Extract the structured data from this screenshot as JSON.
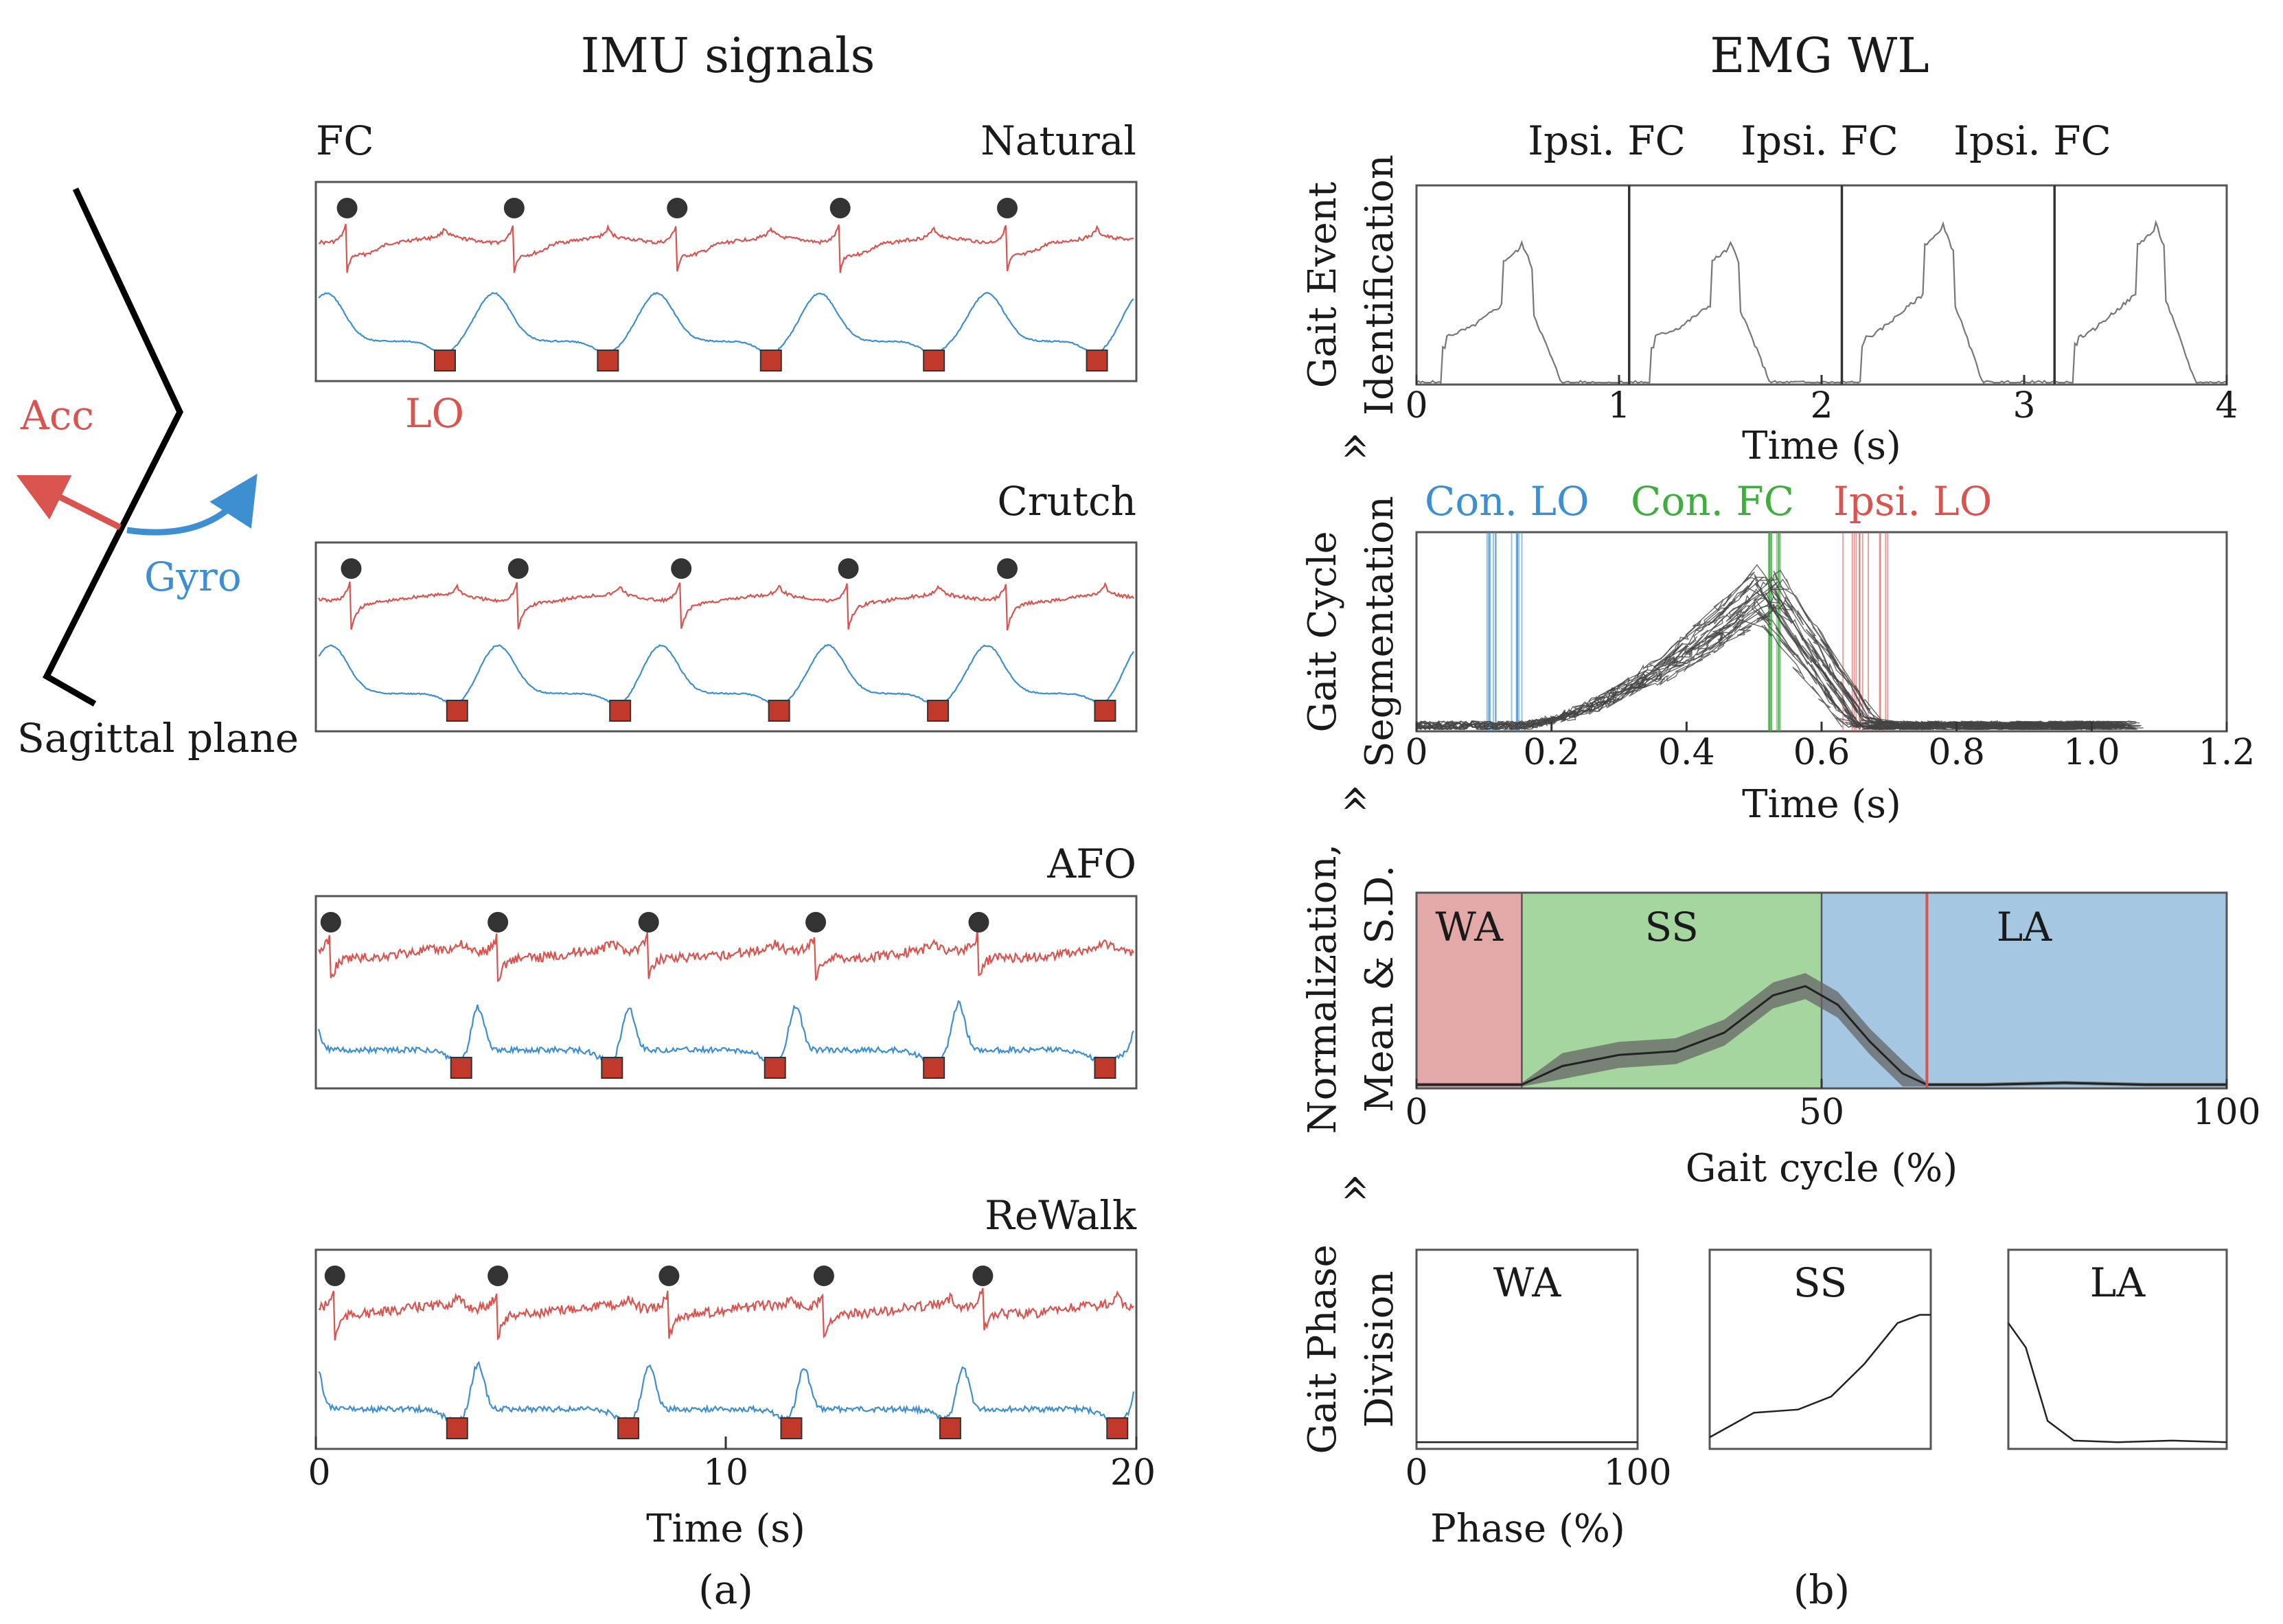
{
  "colors": {
    "acc": "#d9534f",
    "gyro": "#3d8fd1",
    "event_dot": "#333333",
    "lo_square": "#c0392b",
    "wa_fill": "#e3a8a8",
    "ss_fill": "#a6d6a0",
    "la_fill": "#a5c7e2",
    "con_lo": "#3d8fd1",
    "con_fc": "#3fae3f",
    "ipsi_lo": "#d9534f"
  },
  "panel_a": {
    "title": "IMU signals",
    "caption": "(a)",
    "skeleton": {
      "acc_label": "Acc",
      "gyro_label": "Gyro",
      "plane_label": "Sagittal plane"
    },
    "fc_label": "FC",
    "lo_label": "LO",
    "conditions": [
      "Natural",
      "Crutch",
      "AFO",
      "ReWalk"
    ],
    "x_ticks": [
      "0",
      "10",
      "20"
    ],
    "x_label": "Time (s)"
  },
  "panel_b": {
    "title": "EMG WL",
    "caption": "(b)",
    "arrow_glyph": "«",
    "step1": {
      "ylabel_line1": "Gait Event",
      "ylabel_line2": "Identification",
      "annotations": [
        "Ipsi. FC",
        "Ipsi. FC",
        "Ipsi. FC"
      ],
      "x_ticks": [
        "0",
        "1",
        "2",
        "3",
        "4"
      ],
      "x_label": "Time (s)"
    },
    "step2": {
      "ylabel_line1": "Gait Cycle",
      "ylabel_line2": "Segmentation",
      "legend": [
        "Con. LO",
        "Con. FC",
        "Ipsi. LO"
      ],
      "x_ticks": [
        "0",
        "0.2",
        "0.4",
        "0.6",
        "0.8",
        "1.0",
        "1.2"
      ],
      "x_label": "Time (s)"
    },
    "step3": {
      "ylabel_line1": "Normalization,",
      "ylabel_line2": "Mean & S.D.",
      "phases": [
        "WA",
        "SS",
        "LA"
      ],
      "x_ticks": [
        "0",
        "50",
        "100"
      ],
      "x_label": "Gait cycle (%)"
    },
    "step4": {
      "ylabel_line1": "Gait Phase",
      "ylabel_line2": "Division",
      "boxes": [
        "WA",
        "SS",
        "LA"
      ],
      "x_ticks": [
        "0",
        "100"
      ],
      "x_label": "Phase (%)"
    }
  },
  "chart_data": [
    {
      "type": "line",
      "title": "IMU signals",
      "xlabel": "Time (s)",
      "xlim": [
        0,
        20
      ],
      "subplots": [
        "Natural",
        "Crutch",
        "AFO",
        "ReWalk"
      ],
      "series": [
        {
          "name": "Acc"
        },
        {
          "name": "Gyro"
        }
      ],
      "events": {
        "FC_times_s": {
          "Natural": [
            0.7,
            4.8,
            8.8,
            12.8,
            16.9
          ],
          "Crutch": [
            0.8,
            4.9,
            8.9,
            13.0,
            16.9
          ],
          "AFO": [
            0.3,
            4.4,
            8.1,
            12.2,
            16.2
          ],
          "ReWalk": [
            0.4,
            4.4,
            8.6,
            12.4,
            16.3
          ]
        },
        "LO_times_s": {
          "Natural": [
            3.1,
            7.1,
            11.1,
            15.1,
            19.1
          ],
          "Crutch": [
            3.4,
            7.4,
            11.3,
            15.2,
            19.3
          ],
          "AFO": [
            3.5,
            7.2,
            11.2,
            15.1,
            19.3
          ],
          "ReWalk": [
            3.4,
            7.6,
            11.6,
            15.5,
            19.6
          ]
        }
      }
    },
    {
      "type": "line",
      "title": "Gait Event Identification",
      "xlabel": "Time (s)",
      "xlim": [
        0,
        4
      ],
      "ipsi_fc_s": [
        1.05,
        2.1,
        3.15
      ],
      "peaks": [
        {
          "t": 0.52,
          "v": 0.75
        },
        {
          "t": 1.55,
          "v": 0.75
        },
        {
          "t": 2.6,
          "v": 0.85
        },
        {
          "t": 3.65,
          "v": 0.85
        }
      ]
    },
    {
      "type": "line",
      "title": "Gait Cycle Segmentation",
      "xlabel": "Time (s)",
      "xlim": [
        0,
        1.2
      ],
      "con_lo_s": [
        0.13,
        0.15
      ],
      "con_fc_s": [
        0.52,
        0.54
      ],
      "ipsi_lo_s": [
        0.63,
        0.7
      ],
      "peak_t_s": 0.52
    },
    {
      "type": "area",
      "title": "Normalization, Mean & S.D.",
      "xlabel": "Gait cycle (%)",
      "xlim": [
        0,
        100
      ],
      "phase_bounds_pct": {
        "WA": [
          0,
          13
        ],
        "SS": [
          13,
          50
        ],
        "LA": [
          50,
          100
        ]
      },
      "ipsi_lo_pct": 63,
      "mean_x_pct": [
        0,
        13,
        18,
        25,
        32,
        38,
        44,
        48,
        52,
        56,
        60,
        63,
        70,
        80,
        90,
        100
      ],
      "mean_y": [
        0.02,
        0.02,
        0.12,
        0.18,
        0.2,
        0.3,
        0.5,
        0.55,
        0.45,
        0.25,
        0.08,
        0.02,
        0.02,
        0.03,
        0.02,
        0.02
      ],
      "sd": 0.07
    },
    {
      "type": "line",
      "title": "Gait Phase Division",
      "xlabel": "Phase (%)",
      "xlim": [
        0,
        100
      ],
      "series": [
        {
          "name": "WA",
          "x": [
            0,
            25,
            50,
            75,
            100
          ],
          "values": [
            0.02,
            0.02,
            0.02,
            0.02,
            0.02
          ]
        },
        {
          "name": "SS",
          "x": [
            0,
            20,
            40,
            55,
            70,
            85,
            95,
            100
          ],
          "values": [
            0.05,
            0.2,
            0.22,
            0.3,
            0.5,
            0.75,
            0.8,
            0.8
          ]
        },
        {
          "name": "LA",
          "x": [
            0,
            8,
            18,
            30,
            50,
            75,
            100
          ],
          "values": [
            0.75,
            0.6,
            0.15,
            0.03,
            0.02,
            0.03,
            0.02
          ]
        }
      ]
    }
  ]
}
